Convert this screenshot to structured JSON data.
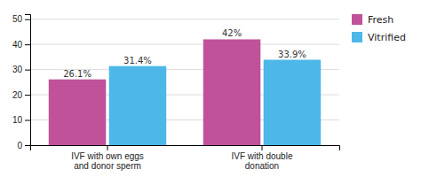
{
  "chart_data": {
    "type": "bar",
    "categories": [
      "IVF with own eggs\nand donor sperm",
      "IVF with double\ndonation"
    ],
    "series": [
      {
        "name": "Fresh",
        "color": "#c0529a",
        "values": [
          26.1,
          42.0
        ],
        "value_labels": [
          "26.1%",
          "42%"
        ]
      },
      {
        "name": "Vitrified",
        "color": "#4db8e8",
        "values": [
          31.4,
          33.9
        ],
        "value_labels": [
          "31.4%",
          "33.9%"
        ]
      }
    ],
    "ylim": [
      0,
      52
    ],
    "yticks": [
      0,
      10,
      20,
      30,
      40,
      50
    ],
    "grid": true,
    "legend": "right",
    "data_labels": true
  }
}
